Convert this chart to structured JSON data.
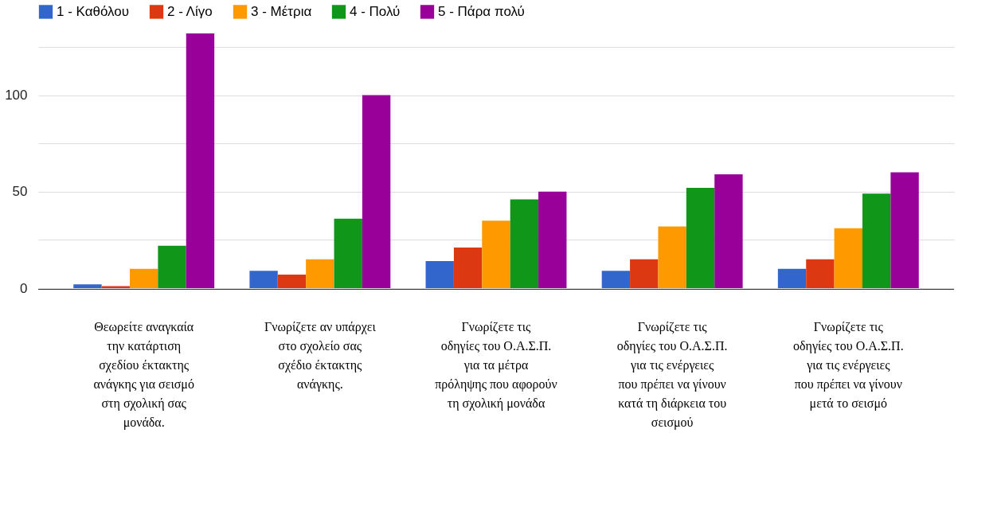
{
  "chart_data": {
    "type": "bar",
    "categories": [
      "Θεωρείτε αναγκαία την κατάρτιση σχεδίου έκτακτης ανάγκης για σεισμό στη σχολική σας μονάδα.",
      "Γνωρίζετε αν υπάρχει στο σχολείο σας σχέδιο έκτακτης ανάγκης.",
      "Γνωρίζετε τις οδηγίες του Ο.Α.Σ.Π. για τα μέτρα πρόληψης που αφορούν τη σχολική μονάδα",
      "Γνωρίζετε τις οδηγίες του Ο.Α.Σ.Π. για τις ενέργειες που πρέπει να γίνουν κατά τη διάρκεια του σεισμού",
      "Γνωρίζετε τις οδηγίες του Ο.Α.Σ.Π. για τις ενέργειες που πρέπει να γίνουν μετά το σεισμό"
    ],
    "series": [
      {
        "name": "1 - Καθόλου",
        "color": "#3366cc",
        "values": [
          2,
          9,
          14,
          9,
          10
        ]
      },
      {
        "name": "2 - Λίγο",
        "color": "#dc3912",
        "values": [
          1,
          7,
          21,
          15,
          15
        ]
      },
      {
        "name": "3 - Μέτρια",
        "color": "#ff9900",
        "values": [
          10,
          15,
          35,
          32,
          31
        ]
      },
      {
        "name": "4 - Πολύ",
        "color": "#109618",
        "values": [
          22,
          36,
          46,
          52,
          49
        ]
      },
      {
        "name": "5 - Πάρα πολύ",
        "color": "#990099",
        "values": [
          132,
          100,
          50,
          59,
          60
        ]
      }
    ],
    "ylim": [
      0,
      132
    ],
    "yticks": [
      0,
      {
        "value": 25,
        "label": null
      },
      50,
      {
        "value": 75,
        "label": null
      },
      100,
      {
        "value": 125,
        "label": null
      }
    ],
    "grid": "y",
    "legend": "top left"
  }
}
